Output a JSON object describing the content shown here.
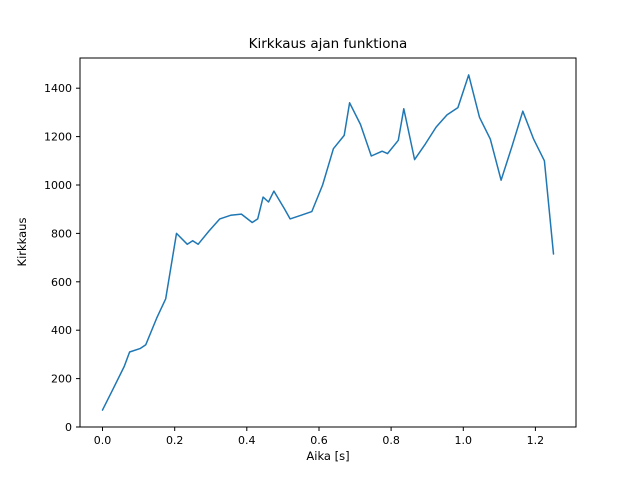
{
  "chart_data": {
    "type": "line",
    "title": "Kirkkaus ajan funktiona",
    "xlabel": "Aika [s]",
    "ylabel": "Kirkkaus",
    "xlim": [
      -0.0625,
      1.3125
    ],
    "ylim": [
      0,
      1525
    ],
    "xticks": [
      0.0,
      0.2,
      0.4,
      0.6,
      0.8,
      1.0,
      1.2
    ],
    "xtick_labels": [
      "0.0",
      "0.2",
      "0.4",
      "0.6",
      "0.8",
      "1.0",
      "1.2"
    ],
    "yticks": [
      0,
      200,
      400,
      600,
      800,
      1000,
      1200,
      1400
    ],
    "ytick_labels": [
      "0",
      "200",
      "400",
      "600",
      "800",
      "1000",
      "1200",
      "1400"
    ],
    "grid": false,
    "legend": "none",
    "line_color": "#1f77b4",
    "axis_color": "#000000",
    "background_color": "#ffffff",
    "series": [
      {
        "name": "kirkkaus",
        "x": [
          0.0,
          0.03,
          0.06,
          0.075,
          0.105,
          0.12,
          0.15,
          0.175,
          0.205,
          0.235,
          0.25,
          0.265,
          0.295,
          0.325,
          0.355,
          0.385,
          0.415,
          0.43,
          0.445,
          0.46,
          0.475,
          0.505,
          0.52,
          0.55,
          0.58,
          0.61,
          0.64,
          0.67,
          0.685,
          0.715,
          0.745,
          0.775,
          0.79,
          0.82,
          0.835,
          0.865,
          0.895,
          0.925,
          0.955,
          0.985,
          1.015,
          1.045,
          1.075,
          1.105,
          1.135,
          1.165,
          1.195,
          1.225,
          1.25
        ],
        "y": [
          70,
          160,
          250,
          310,
          325,
          340,
          450,
          530,
          800,
          755,
          770,
          755,
          810,
          860,
          875,
          880,
          845,
          860,
          950,
          930,
          975,
          900,
          860,
          875,
          890,
          1000,
          1150,
          1205,
          1340,
          1250,
          1120,
          1140,
          1130,
          1185,
          1315,
          1105,
          1170,
          1240,
          1290,
          1320,
          1455,
          1280,
          1190,
          1020,
          1160,
          1305,
          1190,
          1100,
          715
        ]
      }
    ]
  }
}
